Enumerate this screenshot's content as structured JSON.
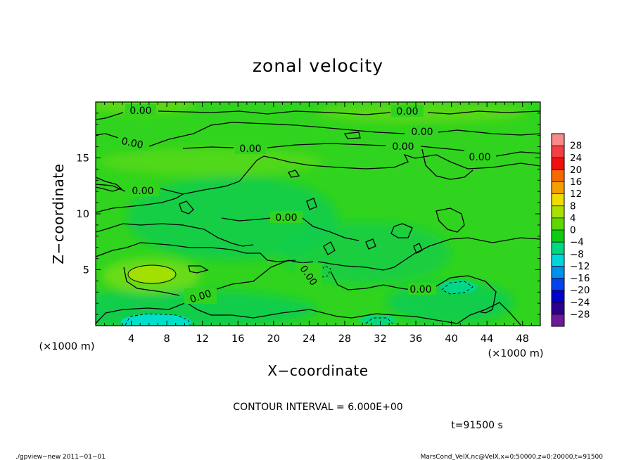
{
  "chart_data": {
    "type": "contour",
    "title": "zonal velocity",
    "xlabel": "X−coordinate",
    "ylabel": "Z−coordinate",
    "x_unit_label": "(×1000 m)",
    "y_unit_label": "(×1000 m)",
    "xlim": [
      0,
      50
    ],
    "ylim": [
      0,
      20
    ],
    "x_ticks": [
      4,
      8,
      12,
      16,
      20,
      24,
      28,
      32,
      36,
      40,
      44,
      48
    ],
    "y_ticks": [
      5,
      10,
      15
    ],
    "contour_interval_text": "CONTOUR INTERVAL = 6.000E+00",
    "time_text": "t=91500 s",
    "contour_label": "0.00",
    "colorbar": {
      "levels": [
        "28",
        "24",
        "20",
        "16",
        "12",
        "8",
        "4",
        "0",
        "−4",
        "−8",
        "−12",
        "−16",
        "−20",
        "−24",
        "−28"
      ],
      "colors": [
        "#f98a8a",
        "#f04040",
        "#f01010",
        "#f56a00",
        "#f5a000",
        "#f0dc00",
        "#a8e000",
        "#60d800",
        "#10cc10",
        "#00d880",
        "#00d8d8",
        "#0090ee",
        "#0044ee",
        "#0000cc",
        "#2a008c",
        "#6a1a9a"
      ]
    },
    "field_colors": {
      "base": "#30d41e",
      "positive_weak": "#70dc14",
      "positive_strong": "#a8e000",
      "negative_weak": "#10cc50",
      "negative_mid": "#00d890",
      "negative_strong": "#00e0d0"
    }
  },
  "footer": {
    "left": "./gpview−new   2011−01−01",
    "right": "MarsCond_VelX.nc@VelX,x=0:50000,z=0:20000,t=91500"
  }
}
